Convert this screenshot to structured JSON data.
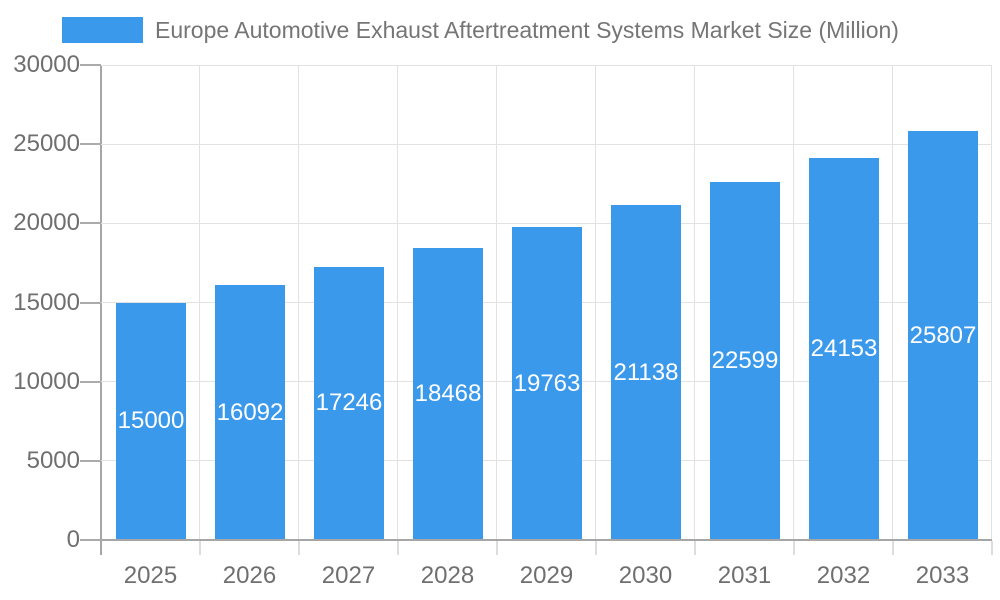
{
  "legend": {
    "label": "Europe Automotive Exhaust Aftertreatment Systems Market Size (Million)"
  },
  "chart_data": {
    "type": "bar",
    "title": "Europe Automotive Exhaust Aftertreatment Systems Market Size (Million)",
    "categories": [
      "2025",
      "2026",
      "2027",
      "2028",
      "2029",
      "2030",
      "2031",
      "2032",
      "2033"
    ],
    "values": [
      15000,
      16092,
      17246,
      18468,
      19763,
      21138,
      22599,
      24153,
      25807
    ],
    "xlabel": "",
    "ylabel": "",
    "ylim": [
      0,
      30000
    ],
    "yticks": [
      0,
      5000,
      10000,
      15000,
      20000,
      25000,
      30000
    ],
    "grid": true,
    "legend_position": "top-left",
    "bar_color": "#3B99EC",
    "value_label_color": "#FFFFFF",
    "axis_label_color": "#6F6F6F",
    "legend_text_color": "#757575",
    "gridline_color": "#E2E2E2",
    "axis_line_color": "#A6A6A6",
    "tick_color": "#ABABAB",
    "x_tick_color": "#DDDDDD",
    "background_color": "#FFFFFF"
  }
}
